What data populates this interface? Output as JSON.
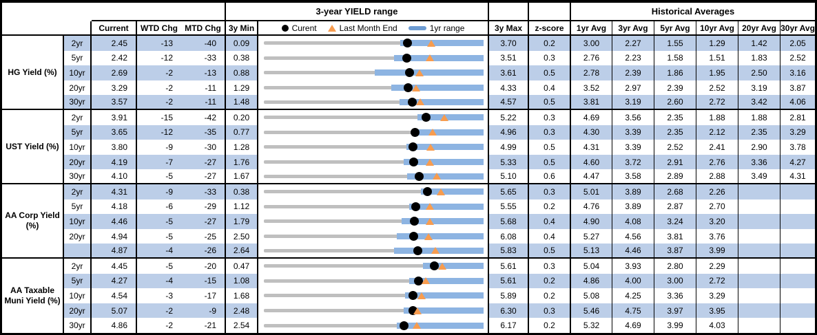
{
  "header": {
    "range_title": "3-year YIELD range",
    "hist_title": "Historical Averages",
    "current": "Current",
    "wtd": "WTD Chg",
    "mtd": "MTD Chg",
    "min": "3y Min",
    "max": "3y Max",
    "z": "z-score",
    "avg_cols": [
      "1yr Avg",
      "3yr Avg",
      "5yr Avg",
      "10yr Avg",
      "20yr Avg",
      "30yr Avg"
    ],
    "legend": {
      "current": "Curent",
      "lme": "Last Month End",
      "range": "1yr range"
    }
  },
  "colors": {
    "stripe": "#bccee8",
    "bar_blue": "#8db4e2",
    "track_gray": "#bfbfbf",
    "marker_orange": "#f79c4f",
    "legend_dash_blue": "#6c9bd2"
  },
  "chart_data": {
    "type": "table",
    "title": "3-year YIELD range",
    "row_chart_type": "bullet-range",
    "notes": "Each row has a 3y min-max gray track, a blue 1yr range bar, black dot = current, orange triangle = last month end",
    "columns": [
      "Current",
      "WTD Chg",
      "MTD Chg",
      "3y Min",
      "3y Max",
      "z-score",
      "1yr Avg",
      "3yr Avg",
      "5yr Avg",
      "10yr Avg",
      "20yr Avg",
      "30yr Avg"
    ],
    "sections": [
      {
        "label": "HG Yield (%)",
        "rows": [
          {
            "tenor": "2yr",
            "current": "2.45",
            "wtd": "-13",
            "mtd": "-40",
            "min": "0.09",
            "max": "3.70",
            "z": "0.2",
            "lme": 2.85,
            "r1lo": 2.33,
            "avgs": [
              "3.00",
              "2.27",
              "1.55",
              "1.29",
              "1.42",
              "2.05"
            ]
          },
          {
            "tenor": "5yr",
            "current": "2.42",
            "wtd": "-12",
            "mtd": "-33",
            "min": "0.38",
            "max": "3.51",
            "z": "0.3",
            "lme": 2.75,
            "r1lo": 2.23,
            "avgs": [
              "2.76",
              "2.23",
              "1.58",
              "1.51",
              "1.83",
              "2.52"
            ]
          },
          {
            "tenor": "10yr",
            "current": "2.69",
            "wtd": "-2",
            "mtd": "-13",
            "min": "0.88",
            "max": "3.61",
            "z": "0.5",
            "lme": 2.82,
            "r1lo": 2.26,
            "avgs": [
              "2.78",
              "2.39",
              "1.86",
              "1.95",
              "2.50",
              "3.16"
            ]
          },
          {
            "tenor": "20yr",
            "current": "3.29",
            "wtd": "-2",
            "mtd": "-11",
            "min": "1.29",
            "max": "4.33",
            "z": "0.4",
            "lme": 3.4,
            "r1lo": 3.05,
            "avgs": [
              "3.52",
              "2.97",
              "2.39",
              "2.52",
              "3.19",
              "3.87"
            ]
          },
          {
            "tenor": "30yr",
            "current": "3.57",
            "wtd": "-2",
            "mtd": "-11",
            "min": "1.48",
            "max": "4.57",
            "z": "0.5",
            "lme": 3.68,
            "r1lo": 3.39,
            "avgs": [
              "3.81",
              "3.19",
              "2.60",
              "2.72",
              "3.42",
              "4.06"
            ]
          }
        ]
      },
      {
        "label": "UST Yield (%)",
        "rows": [
          {
            "tenor": "2yr",
            "current": "3.91",
            "wtd": "-15",
            "mtd": "-42",
            "min": "0.20",
            "max": "5.22",
            "z": "0.3",
            "lme": 4.33,
            "r1lo": 3.71,
            "avgs": [
              "4.69",
              "3.56",
              "2.35",
              "1.88",
              "1.88",
              "2.81"
            ]
          },
          {
            "tenor": "5yr",
            "current": "3.65",
            "wtd": "-12",
            "mtd": "-35",
            "min": "0.77",
            "max": "4.96",
            "z": "0.3",
            "lme": 4.0,
            "r1lo": 3.59,
            "avgs": [
              "4.30",
              "3.39",
              "2.35",
              "2.12",
              "2.35",
              "3.29"
            ]
          },
          {
            "tenor": "10yr",
            "current": "3.80",
            "wtd": "-9",
            "mtd": "-30",
            "min": "1.28",
            "max": "4.99",
            "z": "0.5",
            "lme": 4.1,
            "r1lo": 3.69,
            "avgs": [
              "4.31",
              "3.39",
              "2.52",
              "2.41",
              "2.90",
              "3.78"
            ]
          },
          {
            "tenor": "20yr",
            "current": "4.19",
            "wtd": "-7",
            "mtd": "-27",
            "min": "1.76",
            "max": "5.33",
            "z": "0.5",
            "lme": 4.46,
            "r1lo": 4.03,
            "avgs": [
              "4.60",
              "3.72",
              "2.91",
              "2.76",
              "3.36",
              "4.27"
            ]
          },
          {
            "tenor": "30yr",
            "current": "4.10",
            "wtd": "-5",
            "mtd": "-27",
            "min": "1.67",
            "max": "5.10",
            "z": "0.6",
            "lme": 4.37,
            "r1lo": 3.91,
            "avgs": [
              "4.47",
              "3.58",
              "2.89",
              "2.88",
              "3.49",
              "4.31"
            ]
          }
        ]
      },
      {
        "label": "AA Corp Yield (%)",
        "rows": [
          {
            "tenor": "2yr",
            "current": "4.31",
            "wtd": "-9",
            "mtd": "-33",
            "min": "0.38",
            "max": "5.65",
            "z": "0.3",
            "lme": 4.64,
            "r1lo": 4.15,
            "avgs": [
              "5.01",
              "3.89",
              "2.68",
              "2.26",
              "",
              ""
            ]
          },
          {
            "tenor": "5yr",
            "current": "4.18",
            "wtd": "-6",
            "mtd": "-29",
            "min": "1.12",
            "max": "5.55",
            "z": "0.2",
            "lme": 4.47,
            "r1lo": 4.05,
            "avgs": [
              "4.76",
              "3.89",
              "2.87",
              "2.70",
              "",
              ""
            ]
          },
          {
            "tenor": "10yr",
            "current": "4.46",
            "wtd": "-5",
            "mtd": "-27",
            "min": "1.79",
            "max": "5.68",
            "z": "0.4",
            "lme": 4.73,
            "r1lo": 4.23,
            "avgs": [
              "4.90",
              "4.08",
              "3.24",
              "3.20",
              "",
              ""
            ]
          },
          {
            "tenor": "20yr",
            "current": "4.94",
            "wtd": "-5",
            "mtd": "-25",
            "min": "2.50",
            "max": "6.08",
            "z": "0.4",
            "lme": 5.19,
            "r1lo": 4.67,
            "avgs": [
              "5.27",
              "4.56",
              "3.81",
              "3.76",
              "",
              ""
            ]
          },
          {
            "tenor": "",
            "current": "4.87",
            "wtd": "-4",
            "mtd": "-26",
            "min": "2.64",
            "max": "5.83",
            "z": "0.5",
            "lme": 5.13,
            "r1lo": 4.53,
            "avgs": [
              "5.13",
              "4.46",
              "3.87",
              "3.99",
              "",
              ""
            ]
          }
        ]
      },
      {
        "label": "AA Taxable Muni Yield (%)",
        "rows": [
          {
            "tenor": "2yr",
            "current": "4.45",
            "wtd": "-5",
            "mtd": "-20",
            "min": "0.47",
            "max": "5.61",
            "z": "0.3",
            "lme": 4.65,
            "r1lo": 4.2,
            "avgs": [
              "5.04",
              "3.93",
              "2.80",
              "2.29",
              "",
              ""
            ]
          },
          {
            "tenor": "5yr",
            "current": "4.27",
            "wtd": "-4",
            "mtd": "-15",
            "min": "1.08",
            "max": "5.61",
            "z": "0.2",
            "lme": 4.42,
            "r1lo": 4.08,
            "avgs": [
              "4.86",
              "4.00",
              "3.00",
              "2.72",
              "",
              ""
            ]
          },
          {
            "tenor": "10yr",
            "current": "4.54",
            "wtd": "-3",
            "mtd": "-17",
            "min": "1.68",
            "max": "5.89",
            "z": "0.2",
            "lme": 4.71,
            "r1lo": 4.38,
            "avgs": [
              "5.08",
              "4.25",
              "3.36",
              "3.29",
              "",
              ""
            ]
          },
          {
            "tenor": "20yr",
            "current": "5.07",
            "wtd": "-2",
            "mtd": "-9",
            "min": "2.48",
            "max": "6.30",
            "z": "0.3",
            "lme": 5.16,
            "r1lo": 4.91,
            "avgs": [
              "5.46",
              "4.75",
              "3.97",
              "3.95",
              "",
              ""
            ]
          },
          {
            "tenor": "30yr",
            "current": "4.86",
            "wtd": "-2",
            "mtd": "-21",
            "min": "2.54",
            "max": "6.17",
            "z": "0.2",
            "lme": 5.07,
            "r1lo": 4.74,
            "avgs": [
              "5.32",
              "4.69",
              "3.99",
              "4.03",
              "",
              ""
            ]
          }
        ]
      }
    ]
  }
}
